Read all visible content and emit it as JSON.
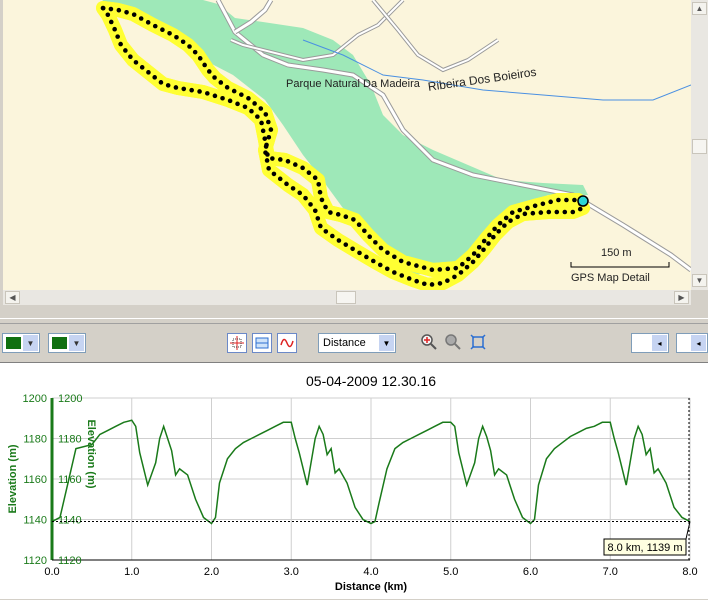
{
  "map": {
    "labels": {
      "park": "Parque Natural Da Madeira",
      "river": "Ribeira Dos Boieiros",
      "scale": "150 m",
      "detail": "GPS Map Detail"
    }
  },
  "toolbar": {
    "color1": "#107010",
    "color2": "#107010",
    "axis_select": "Distance"
  },
  "chart_data": {
    "type": "line",
    "title": "05-04-2009 12.30.16",
    "xlabel": "Distance (km)",
    "ylabel": "Elevation (m)",
    "ylabel2": "Elevation (m)",
    "xlim": [
      0,
      8
    ],
    "ylim": [
      1120,
      1200
    ],
    "xticks": [
      "0.0",
      "1.0",
      "2.0",
      "3.0",
      "4.0",
      "5.0",
      "6.0",
      "7.0",
      "8.0"
    ],
    "yticks": [
      "1200",
      "1180",
      "1160",
      "1140",
      "1120"
    ],
    "grid": true,
    "line_color": "#1a7a1a",
    "series": [
      {
        "x": [
          0.0,
          0.1,
          0.2,
          0.3,
          0.5,
          0.6,
          0.7,
          0.8,
          0.9,
          1.0,
          1.05,
          1.1,
          1.2,
          1.3,
          1.35,
          1.4,
          1.45,
          1.5,
          1.55,
          1.6,
          1.7,
          1.8,
          1.9,
          2.0,
          2.05,
          2.1,
          2.2,
          2.3,
          2.4,
          2.5,
          2.6,
          2.7,
          2.8,
          2.9,
          3.0,
          3.05,
          3.1,
          3.2,
          3.3,
          3.35,
          3.4,
          3.45,
          3.5,
          3.55,
          3.6,
          3.7,
          3.8,
          3.9,
          4.0,
          4.05,
          4.1,
          4.2,
          4.3,
          4.4,
          4.5,
          4.6,
          4.7,
          4.8,
          4.9,
          5.0,
          5.05,
          5.1,
          5.2,
          5.3,
          5.35,
          5.4,
          5.45,
          5.5,
          5.55,
          5.6,
          5.7,
          5.8,
          5.9,
          6.0,
          6.05,
          6.1,
          6.2,
          6.3,
          6.4,
          6.5,
          6.6,
          6.7,
          6.8,
          6.9,
          7.0,
          7.05,
          7.1,
          7.2,
          7.3,
          7.35,
          7.4,
          7.45,
          7.5,
          7.55,
          7.6,
          7.7,
          7.8,
          7.9,
          8.0
        ],
        "y": [
          1139,
          1141,
          1158,
          1175,
          1177,
          1182,
          1184,
          1186,
          1188,
          1189,
          1186,
          1173,
          1157,
          1168,
          1180,
          1186,
          1180,
          1174,
          1162,
          1165,
          1162,
          1150,
          1141,
          1138,
          1141,
          1158,
          1170,
          1175,
          1178,
          1180,
          1182,
          1184,
          1186,
          1188,
          1188,
          1180,
          1173,
          1157,
          1180,
          1186,
          1182,
          1172,
          1175,
          1163,
          1165,
          1158,
          1146,
          1140,
          1138,
          1139,
          1148,
          1165,
          1175,
          1178,
          1180,
          1182,
          1184,
          1186,
          1188,
          1188,
          1186,
          1173,
          1157,
          1168,
          1180,
          1186,
          1181,
          1174,
          1162,
          1165,
          1162,
          1150,
          1141,
          1138,
          1140,
          1157,
          1170,
          1175,
          1178,
          1181,
          1183,
          1185,
          1186,
          1188,
          1188,
          1180,
          1173,
          1157,
          1180,
          1186,
          1182,
          1172,
          1175,
          1163,
          1165,
          1158,
          1146,
          1141,
          1139
        ]
      }
    ],
    "tooltip": "8.0 km, 1139 m",
    "marker": {
      "x": 8.0,
      "y": 1139
    }
  }
}
